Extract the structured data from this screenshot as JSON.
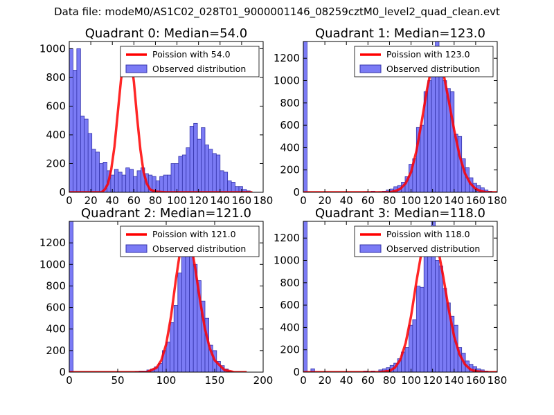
{
  "figure": {
    "suptitle": "Data file: modeM0/AS1C02_028T01_9000001146_08259cztM0_level2_quad_clean.evt"
  },
  "colors": {
    "poisson_line": "#ff0000",
    "histogram_fill": "#7b7bf5",
    "histogram_edge": "#3333aa",
    "axis": "#000000"
  },
  "chart_data": [
    {
      "type": "bar",
      "title": "Quadrant 0: Median=54.0",
      "legend": {
        "position": "top-right",
        "entries": [
          "Poission with 54.0",
          "Observed distribution"
        ]
      },
      "xlim": [
        0,
        180
      ],
      "ylim": [
        0,
        1050
      ],
      "xticks": [
        0,
        20,
        40,
        60,
        80,
        100,
        120,
        140,
        160,
        180
      ],
      "yticks": [
        0,
        200,
        400,
        600,
        800,
        1000
      ],
      "bin_width": 3.5,
      "hist": {
        "x": [
          0,
          3.5,
          7,
          10.5,
          14,
          17.5,
          21,
          24.5,
          28,
          31.5,
          35,
          38.5,
          42,
          45.5,
          49,
          52.5,
          56,
          59.5,
          63,
          66.5,
          70,
          73.5,
          77,
          80.5,
          84,
          87.5,
          91,
          94.5,
          98,
          101.5,
          105,
          108.5,
          112,
          115.5,
          119,
          122.5,
          126,
          129.5,
          133,
          136.5,
          140,
          143.5,
          147,
          150.5,
          154,
          157.5,
          161,
          164.5
        ],
        "values": [
          1000,
          850,
          1000,
          530,
          510,
          410,
          300,
          280,
          200,
          210,
          150,
          120,
          160,
          140,
          120,
          170,
          160,
          110,
          150,
          170,
          130,
          120,
          110,
          80,
          110,
          120,
          120,
          200,
          200,
          250,
          260,
          310,
          460,
          480,
          370,
          450,
          330,
          300,
          270,
          260,
          150,
          140,
          80,
          70,
          40,
          40,
          20,
          10
        ]
      },
      "poisson": {
        "mean": 54.0,
        "x": [
          0,
          30,
          33,
          36,
          39,
          42,
          45,
          48,
          51,
          54,
          57,
          60,
          63,
          66,
          69,
          72,
          75,
          80,
          90,
          100,
          110,
          120,
          140,
          160,
          170
        ],
        "y": [
          0,
          0,
          20,
          60,
          160,
          320,
          550,
          780,
          950,
          985,
          940,
          770,
          520,
          300,
          140,
          60,
          20,
          5,
          0,
          0,
          0,
          0,
          0,
          0,
          0
        ]
      }
    },
    {
      "type": "bar",
      "title": "Quadrant 1: Median=123.0",
      "legend": {
        "position": "top-right",
        "entries": [
          "Poission with 123.0",
          "Observed distribution"
        ]
      },
      "xlim": [
        0,
        180
      ],
      "ylim": [
        0,
        1350
      ],
      "xticks": [
        0,
        20,
        40,
        60,
        80,
        100,
        120,
        140,
        160,
        180
      ],
      "yticks": [
        0,
        200,
        400,
        600,
        800,
        1000,
        1200
      ],
      "bin_width": 3.5,
      "hist": {
        "x": [
          0,
          56,
          63,
          70,
          73.5,
          77,
          80.5,
          84,
          87.5,
          91,
          94.5,
          98,
          101.5,
          105,
          108.5,
          112,
          115.5,
          119,
          122.5,
          126,
          129.5,
          133,
          136.5,
          140,
          143.5,
          147,
          150.5,
          154,
          157.5,
          161,
          164.5,
          168,
          171.5
        ],
        "values": [
          1350,
          5,
          10,
          5,
          10,
          20,
          30,
          50,
          60,
          90,
          140,
          250,
          300,
          580,
          600,
          900,
          1000,
          1100,
          1350,
          1100,
          1000,
          930,
          900,
          520,
          500,
          300,
          220,
          130,
          80,
          60,
          40,
          20,
          10
        ]
      },
      "poisson": {
        "mean": 123.0,
        "x": [
          0,
          80,
          85,
          90,
          95,
          100,
          105,
          110,
          115,
          120,
          123,
          126,
          130,
          135,
          140,
          145,
          150,
          155,
          160,
          165,
          170,
          180
        ],
        "y": [
          0,
          0,
          10,
          30,
          80,
          180,
          370,
          640,
          930,
          1160,
          1220,
          1190,
          1070,
          820,
          560,
          330,
          170,
          80,
          30,
          10,
          0,
          0
        ]
      }
    },
    {
      "type": "bar",
      "title": "Quadrant 2: Median=121.0",
      "legend": {
        "position": "top-right",
        "entries": [
          "Poission with 121.0",
          "Observed distribution"
        ]
      },
      "xlim": [
        0,
        200
      ],
      "ylim": [
        0,
        1400
      ],
      "xticks": [
        0,
        50,
        100,
        150,
        200
      ],
      "yticks": [
        0,
        200,
        400,
        600,
        800,
        1000,
        1200
      ],
      "bin_width": 4,
      "hist": {
        "x": [
          0,
          68,
          72,
          76,
          80,
          84,
          88,
          92,
          96,
          100,
          104,
          108,
          112,
          116,
          120,
          124,
          128,
          132,
          136,
          140,
          144,
          148,
          152,
          156,
          160,
          164
        ],
        "values": [
          1400,
          5,
          10,
          10,
          20,
          30,
          50,
          80,
          200,
          280,
          460,
          620,
          920,
          1120,
          1340,
          1100,
          1000,
          850,
          660,
          500,
          250,
          200,
          100,
          60,
          30,
          10
        ]
      },
      "poisson": {
        "mean": 121.0,
        "x": [
          0,
          80,
          90,
          95,
          100,
          105,
          110,
          115,
          118,
          121,
          124,
          127,
          130,
          135,
          140,
          145,
          150,
          160,
          170,
          183
        ],
        "y": [
          0,
          0,
          40,
          110,
          260,
          520,
          860,
          1160,
          1260,
          1290,
          1240,
          1120,
          960,
          660,
          400,
          220,
          110,
          20,
          0,
          0
        ]
      }
    },
    {
      "type": "bar",
      "title": "Quadrant 3: Median=118.0",
      "legend": {
        "position": "top-right",
        "entries": [
          "Poission with 118.0",
          "Observed distribution"
        ]
      },
      "xlim": [
        0,
        180
      ],
      "ylim": [
        0,
        1350
      ],
      "xticks": [
        0,
        20,
        40,
        60,
        80,
        100,
        120,
        140,
        160,
        180
      ],
      "yticks": [
        0,
        200,
        400,
        600,
        800,
        1000,
        1200
      ],
      "bin_width": 3.5,
      "hist": {
        "x": [
          0,
          7,
          56,
          63,
          70,
          73.5,
          77,
          80.5,
          84,
          87.5,
          91,
          94.5,
          98,
          101.5,
          105,
          108.5,
          112,
          115.5,
          119,
          122.5,
          126,
          129.5,
          133,
          136.5,
          140,
          143.5,
          147,
          150.5,
          154,
          157.5,
          161,
          164.5,
          168
        ],
        "values": [
          1350,
          30,
          10,
          10,
          20,
          30,
          40,
          60,
          80,
          120,
          180,
          220,
          420,
          470,
          770,
          760,
          1150,
          1250,
          1350,
          1000,
          950,
          750,
          620,
          500,
          420,
          220,
          170,
          100,
          70,
          50,
          30,
          20,
          10
        ]
      },
      "poisson": {
        "mean": 118.0,
        "x": [
          0,
          70,
          80,
          85,
          90,
          95,
          100,
          105,
          110,
          115,
          118,
          121,
          125,
          130,
          135,
          140,
          145,
          150,
          155,
          160,
          170,
          180
        ],
        "y": [
          0,
          0,
          10,
          40,
          110,
          260,
          500,
          810,
          1090,
          1240,
          1270,
          1240,
          1110,
          850,
          560,
          320,
          160,
          70,
          25,
          8,
          0,
          0
        ]
      }
    }
  ]
}
